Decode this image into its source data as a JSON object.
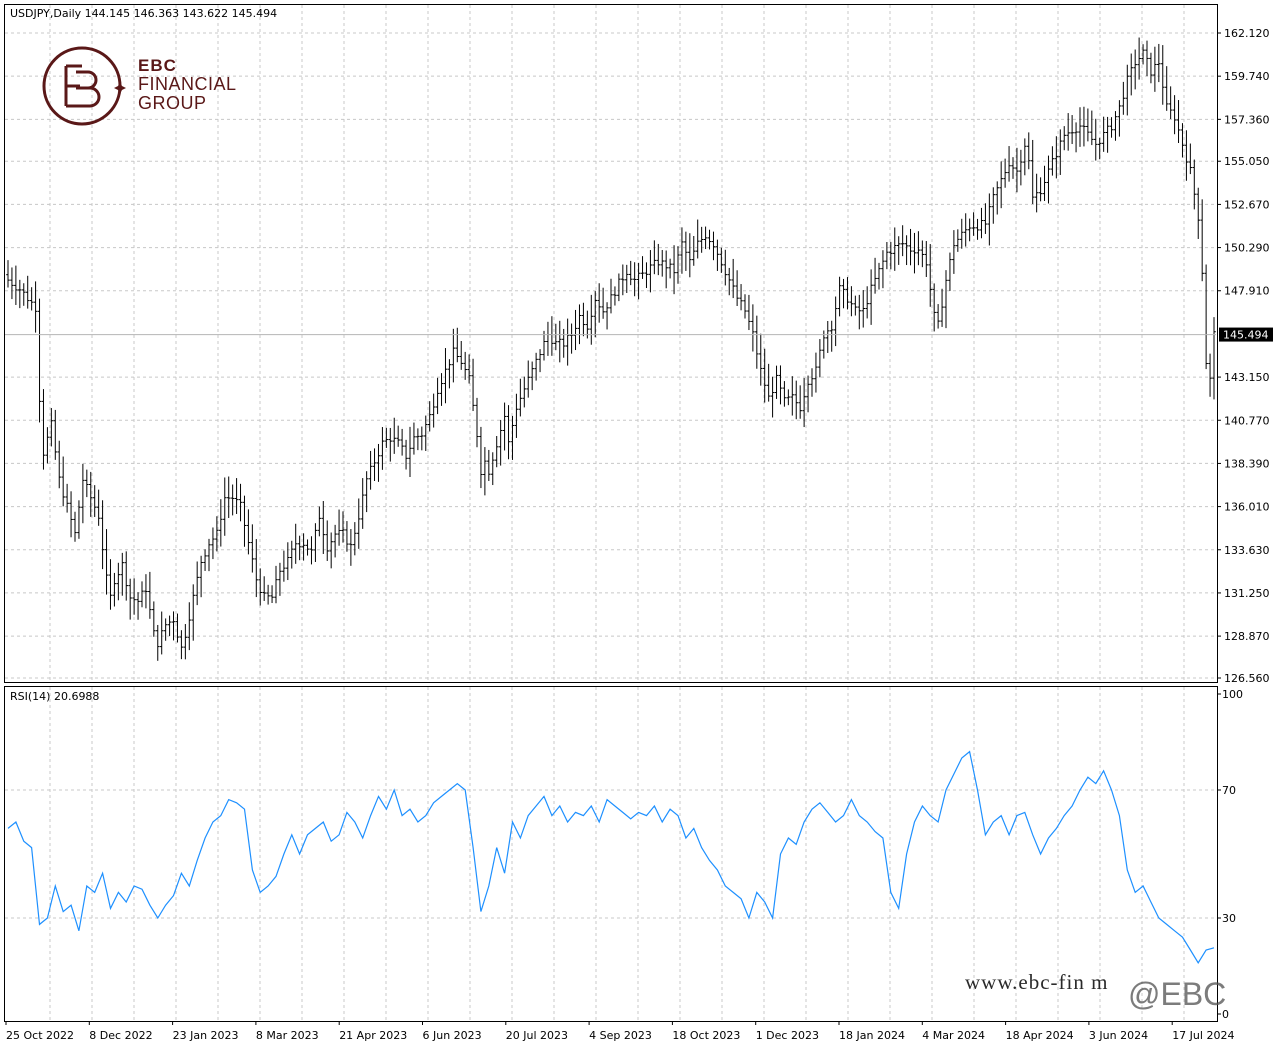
{
  "header": {
    "symbol_line": "USDJPY,Daily  144.145 146.363 143.622 145.494"
  },
  "logo": {
    "line1": "EBC",
    "line2": "FINANCIAL",
    "line3": "GROUP"
  },
  "rsi_header": "RSI(14) 20.6988",
  "watermark": {
    "url": "www.ebc-fin    m",
    "handle": "@EBC"
  },
  "colors": {
    "bars": "#000000",
    "rsi_line": "#1e90ff",
    "grid": "#c8c8c8",
    "price_label_bg": "#000000",
    "logo": "#5a1818"
  },
  "chart_data": [
    {
      "type": "ohlc",
      "symbol": "USDJPY",
      "timeframe": "Daily",
      "last_price": "145.494",
      "ylim": [
        126.56,
        162.12
      ],
      "y_tick_labels": [
        "162.120",
        "159.740",
        "157.360",
        "155.050",
        "152.670",
        "150.290",
        "147.910",
        "145.494",
        "143.150",
        "140.770",
        "138.390",
        "136.010",
        "133.630",
        "131.250",
        "128.870",
        "126.560"
      ],
      "y_ticks": [
        162.12,
        159.74,
        157.36,
        155.05,
        152.67,
        150.29,
        147.91,
        143.15,
        140.77,
        138.39,
        136.01,
        133.63,
        131.25,
        128.87,
        126.56
      ],
      "x_tick_labels": [
        "25 Oct 2022",
        "8 Dec 2022",
        "23 Jan 2023",
        "8 Mar 2023",
        "21 Apr 2023",
        "6 Jun 2023",
        "20 Jul 2023",
        "4 Sep 2023",
        "18 Oct 2023",
        "1 Dec 2023",
        "18 Jan 2024",
        "4 Mar 2024",
        "18 Apr 2024",
        "3 Jun 2024",
        "17 Jul 2024"
      ],
      "close_path": [
        [
          0,
          148.5
        ],
        [
          3,
          148.0
        ],
        [
          7,
          147.0
        ],
        [
          8,
          142.0
        ],
        [
          9,
          139.0
        ],
        [
          11,
          140.5
        ],
        [
          13,
          137.5
        ],
        [
          15,
          136.0
        ],
        [
          17,
          134.5
        ],
        [
          19,
          137.5
        ],
        [
          21,
          136.5
        ],
        [
          23,
          135.5
        ],
        [
          25,
          132.0
        ],
        [
          26,
          131.0
        ],
        [
          27,
          132.0
        ],
        [
          29,
          132.8
        ],
        [
          31,
          131.0
        ],
        [
          33,
          130.8
        ],
        [
          35,
          131.5
        ],
        [
          37,
          129.0
        ],
        [
          38,
          128.5
        ],
        [
          40,
          129.5
        ],
        [
          42,
          129.8
        ],
        [
          44,
          128.2
        ],
        [
          45,
          129.0
        ],
        [
          47,
          131.0
        ],
        [
          49,
          133.0
        ],
        [
          51,
          134.0
        ],
        [
          53,
          134.5
        ],
        [
          55,
          136.5
        ],
        [
          57,
          136.5
        ],
        [
          59,
          136.0
        ],
        [
          61,
          134.0
        ],
        [
          63,
          132.0
        ],
        [
          65,
          131.0
        ],
        [
          67,
          131.0
        ],
        [
          69,
          132.5
        ],
        [
          71,
          133.0
        ],
        [
          73,
          134.0
        ],
        [
          75,
          134.0
        ],
        [
          77,
          133.5
        ],
        [
          79,
          135.5
        ],
        [
          81,
          133.8
        ],
        [
          83,
          134.5
        ],
        [
          85,
          134.5
        ],
        [
          87,
          133.8
        ],
        [
          89,
          135.5
        ],
        [
          91,
          137.5
        ],
        [
          93,
          138.5
        ],
        [
          95,
          139.5
        ],
        [
          97,
          139.8
        ],
        [
          99,
          139.5
        ],
        [
          101,
          138.8
        ],
        [
          103,
          139.8
        ],
        [
          105,
          140.0
        ],
        [
          107,
          141.0
        ],
        [
          109,
          142.5
        ],
        [
          111,
          143.5
        ],
        [
          113,
          144.5
        ],
        [
          115,
          144.0
        ],
        [
          117,
          143.0
        ],
        [
          119,
          140.0
        ],
        [
          120,
          138.0
        ],
        [
          121,
          138.5
        ],
        [
          122,
          138.0
        ],
        [
          124,
          139.5
        ],
        [
          126,
          141.0
        ],
        [
          127,
          139.5
        ],
        [
          129,
          141.5
        ],
        [
          131,
          142.5
        ],
        [
          133,
          143.5
        ],
        [
          135,
          144.5
        ],
        [
          137,
          145.5
        ],
        [
          139,
          145.0
        ],
        [
          141,
          145.0
        ],
        [
          143,
          145.5
        ],
        [
          145,
          146.5
        ],
        [
          147,
          146.0
        ],
        [
          149,
          147.5
        ],
        [
          151,
          146.8
        ],
        [
          153,
          147.5
        ],
        [
          155,
          148.3
        ],
        [
          157,
          149.0
        ],
        [
          159,
          148.5
        ],
        [
          161,
          148.8
        ],
        [
          163,
          149.2
        ],
        [
          165,
          149.5
        ],
        [
          167,
          149.3
        ],
        [
          169,
          149.0
        ],
        [
          171,
          150.5
        ],
        [
          173,
          149.5
        ],
        [
          175,
          150.5
        ],
        [
          177,
          151.0
        ],
        [
          179,
          150.5
        ],
        [
          181,
          149.5
        ],
        [
          183,
          148.5
        ],
        [
          185,
          147.5
        ],
        [
          187,
          146.8
        ],
        [
          189,
          145.5
        ],
        [
          191,
          143.5
        ],
        [
          193,
          142.0
        ],
        [
          195,
          143.0
        ],
        [
          197,
          141.8
        ],
        [
          199,
          142.0
        ],
        [
          201,
          141.5
        ],
        [
          203,
          143.0
        ],
        [
          205,
          143.5
        ],
        [
          207,
          145.5
        ],
        [
          209,
          146.0
        ],
        [
          211,
          148.0
        ],
        [
          213,
          147.5
        ],
        [
          215,
          146.8
        ],
        [
          217,
          146.8
        ],
        [
          219,
          148.0
        ],
        [
          221,
          149.0
        ],
        [
          223,
          150.0
        ],
        [
          225,
          150.3
        ],
        [
          227,
          150.5
        ],
        [
          229,
          150.2
        ],
        [
          231,
          150.2
        ],
        [
          233,
          149.5
        ],
        [
          235,
          146.5
        ],
        [
          236,
          146.0
        ],
        [
          238,
          148.5
        ],
        [
          240,
          150.5
        ],
        [
          242,
          151.0
        ],
        [
          244,
          151.5
        ],
        [
          246,
          151.5
        ],
        [
          248,
          151.6
        ],
        [
          250,
          153.0
        ],
        [
          252,
          154.0
        ],
        [
          254,
          155.0
        ],
        [
          256,
          154.5
        ],
        [
          258,
          156.0
        ],
        [
          259,
          155.0
        ],
        [
          260,
          153.0
        ],
        [
          262,
          153.5
        ],
        [
          264,
          154.5
        ],
        [
          266,
          155.5
        ],
        [
          268,
          156.5
        ],
        [
          270,
          156.8
        ],
        [
          272,
          157.0
        ],
        [
          274,
          156.5
        ],
        [
          276,
          156.0
        ],
        [
          278,
          156.5
        ],
        [
          280,
          157.0
        ],
        [
          282,
          158.0
        ],
        [
          284,
          159.5
        ],
        [
          286,
          160.5
        ],
        [
          288,
          161.0
        ],
        [
          290,
          160.0
        ],
        [
          292,
          160.5
        ],
        [
          294,
          158.0
        ],
        [
          296,
          157.5
        ],
        [
          298,
          156.0
        ],
        [
          300,
          154.5
        ],
        [
          302,
          152.0
        ],
        [
          303,
          149.0
        ],
        [
          304,
          144.0
        ],
        [
          305,
          143.0
        ],
        [
          306,
          145.494
        ]
      ]
    },
    {
      "type": "line",
      "series": [
        {
          "name": "RSI(14)"
        }
      ],
      "current_value": "20.6988",
      "ylim": [
        0,
        100
      ],
      "y_ticks": [
        100,
        70,
        30,
        0
      ],
      "x_tick_labels": [
        "25 Oct 2022",
        "8 Dec 2022",
        "23 Jan 2023",
        "8 Mar 2023",
        "21 Apr 2023",
        "6 Jun 2023",
        "20 Jul 2023",
        "4 Sep 2023",
        "18 Oct 2023",
        "1 Dec 2023",
        "18 Jan 2024",
        "4 Mar 2024",
        "18 Apr 2024",
        "3 Jun 2024",
        "17 Jul 2024"
      ],
      "points": [
        [
          0,
          58
        ],
        [
          2,
          60
        ],
        [
          4,
          54
        ],
        [
          6,
          52
        ],
        [
          8,
          28
        ],
        [
          10,
          30
        ],
        [
          12,
          40
        ],
        [
          14,
          32
        ],
        [
          16,
          34
        ],
        [
          18,
          26
        ],
        [
          20,
          40
        ],
        [
          22,
          38
        ],
        [
          24,
          44
        ],
        [
          26,
          33
        ],
        [
          28,
          38
        ],
        [
          30,
          35
        ],
        [
          32,
          40
        ],
        [
          34,
          39
        ],
        [
          36,
          34
        ],
        [
          38,
          30
        ],
        [
          40,
          34
        ],
        [
          42,
          37
        ],
        [
          44,
          44
        ],
        [
          46,
          40
        ],
        [
          48,
          48
        ],
        [
          50,
          55
        ],
        [
          52,
          60
        ],
        [
          54,
          62
        ],
        [
          56,
          67
        ],
        [
          58,
          66
        ],
        [
          60,
          64
        ],
        [
          62,
          45
        ],
        [
          64,
          38
        ],
        [
          66,
          40
        ],
        [
          68,
          43
        ],
        [
          70,
          50
        ],
        [
          72,
          56
        ],
        [
          74,
          50
        ],
        [
          76,
          56
        ],
        [
          78,
          58
        ],
        [
          80,
          60
        ],
        [
          82,
          54
        ],
        [
          84,
          56
        ],
        [
          86,
          63
        ],
        [
          88,
          60
        ],
        [
          90,
          55
        ],
        [
          92,
          62
        ],
        [
          94,
          68
        ],
        [
          96,
          64
        ],
        [
          98,
          70
        ],
        [
          100,
          62
        ],
        [
          102,
          64
        ],
        [
          104,
          60
        ],
        [
          106,
          62
        ],
        [
          108,
          66
        ],
        [
          110,
          68
        ],
        [
          112,
          70
        ],
        [
          114,
          72
        ],
        [
          116,
          70
        ],
        [
          118,
          52
        ],
        [
          120,
          32
        ],
        [
          122,
          40
        ],
        [
          124,
          52
        ],
        [
          126,
          44
        ],
        [
          128,
          60
        ],
        [
          130,
          55
        ],
        [
          132,
          62
        ],
        [
          134,
          65
        ],
        [
          136,
          68
        ],
        [
          138,
          62
        ],
        [
          140,
          65
        ],
        [
          142,
          60
        ],
        [
          144,
          63
        ],
        [
          146,
          62
        ],
        [
          148,
          65
        ],
        [
          150,
          60
        ],
        [
          152,
          67
        ],
        [
          154,
          65
        ],
        [
          156,
          63
        ],
        [
          158,
          61
        ],
        [
          160,
          63
        ],
        [
          162,
          62
        ],
        [
          164,
          65
        ],
        [
          166,
          60
        ],
        [
          168,
          64
        ],
        [
          170,
          62
        ],
        [
          172,
          55
        ],
        [
          174,
          58
        ],
        [
          176,
          52
        ],
        [
          178,
          48
        ],
        [
          180,
          45
        ],
        [
          182,
          40
        ],
        [
          184,
          38
        ],
        [
          186,
          36
        ],
        [
          188,
          30
        ],
        [
          190,
          38
        ],
        [
          192,
          35
        ],
        [
          194,
          30
        ],
        [
          196,
          50
        ],
        [
          198,
          55
        ],
        [
          200,
          53
        ],
        [
          202,
          60
        ],
        [
          204,
          64
        ],
        [
          206,
          66
        ],
        [
          208,
          63
        ],
        [
          210,
          60
        ],
        [
          212,
          62
        ],
        [
          214,
          67
        ],
        [
          216,
          62
        ],
        [
          218,
          60
        ],
        [
          220,
          57
        ],
        [
          222,
          55
        ],
        [
          224,
          38
        ],
        [
          226,
          33
        ],
        [
          228,
          50
        ],
        [
          230,
          60
        ],
        [
          232,
          65
        ],
        [
          234,
          62
        ],
        [
          236,
          60
        ],
        [
          238,
          70
        ],
        [
          240,
          75
        ],
        [
          242,
          80
        ],
        [
          244,
          82
        ],
        [
          246,
          70
        ],
        [
          248,
          56
        ],
        [
          250,
          60
        ],
        [
          252,
          62
        ],
        [
          254,
          56
        ],
        [
          256,
          62
        ],
        [
          258,
          63
        ],
        [
          260,
          56
        ],
        [
          262,
          50
        ],
        [
          264,
          55
        ],
        [
          266,
          58
        ],
        [
          268,
          62
        ],
        [
          270,
          65
        ],
        [
          272,
          70
        ],
        [
          274,
          74
        ],
        [
          276,
          72
        ],
        [
          278,
          76
        ],
        [
          280,
          70
        ],
        [
          282,
          62
        ],
        [
          284,
          45
        ],
        [
          286,
          38
        ],
        [
          288,
          40
        ],
        [
          290,
          35
        ],
        [
          292,
          30
        ],
        [
          294,
          28
        ],
        [
          296,
          26
        ],
        [
          298,
          24
        ],
        [
          300,
          20
        ],
        [
          302,
          16
        ],
        [
          304,
          20
        ],
        [
          306,
          20.6988
        ]
      ]
    }
  ]
}
